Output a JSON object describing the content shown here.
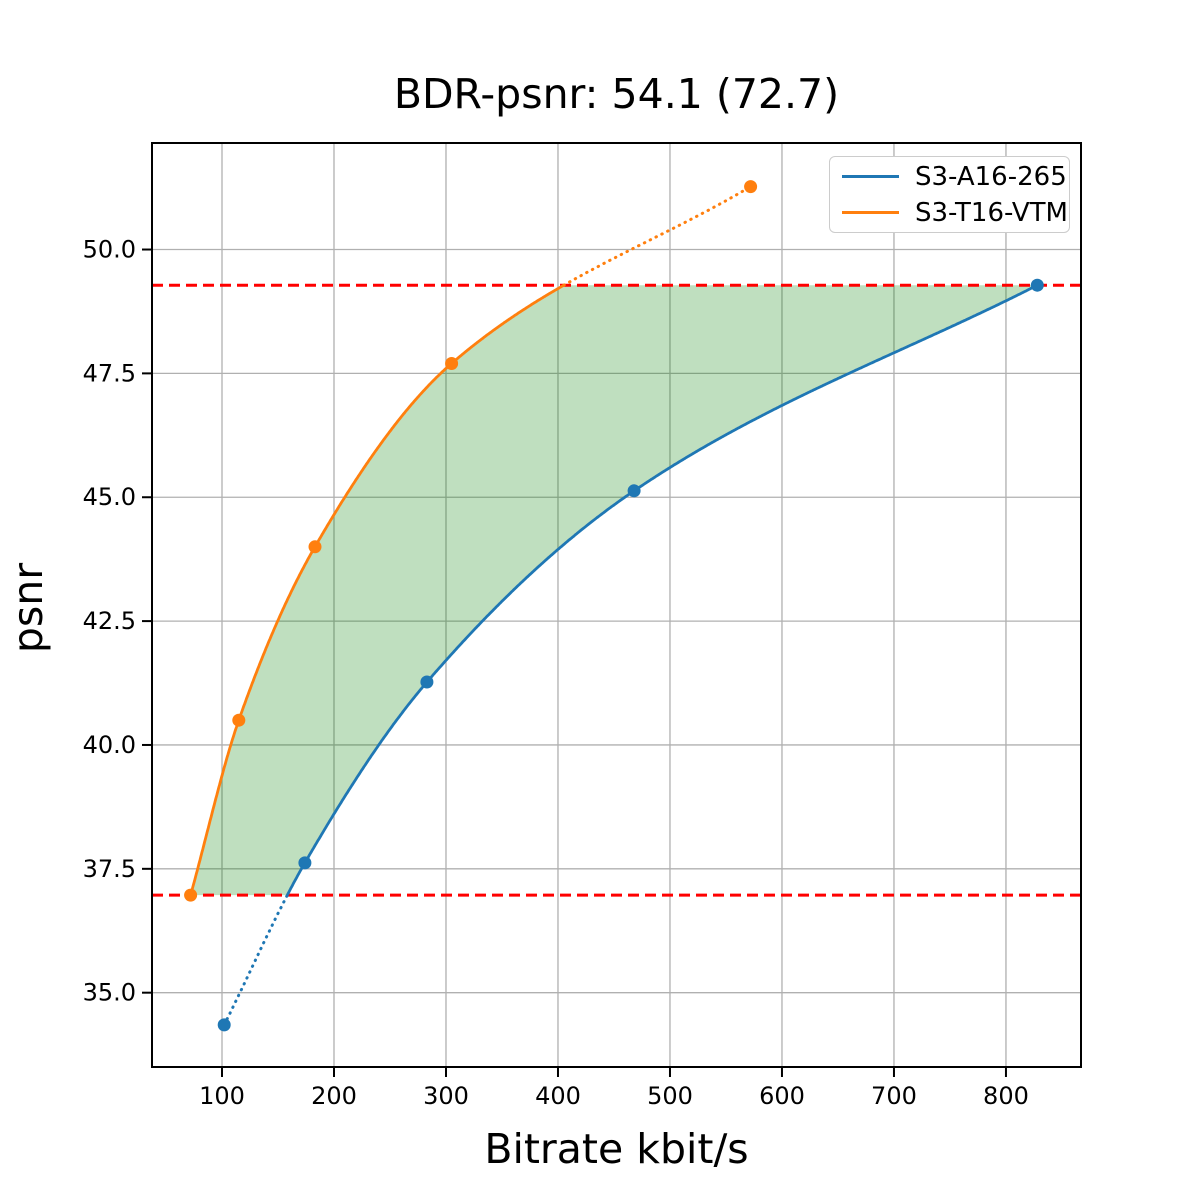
{
  "chart_data": {
    "type": "line",
    "title": "BDR-psnr: 54.1 (72.7)",
    "xlabel": "Bitrate kbit/s",
    "ylabel": "psnr",
    "xlim": [
      37.5,
      867
    ],
    "ylim": [
      33.5,
      52.15
    ],
    "xticks": [
      100,
      200,
      300,
      400,
      500,
      600,
      700,
      800
    ],
    "xtick_labels": [
      "100",
      "200",
      "300",
      "400",
      "500",
      "600",
      "700",
      "800"
    ],
    "yticks": [
      35.0,
      37.5,
      40.0,
      42.5,
      45.0,
      47.5,
      50.0
    ],
    "ytick_labels": [
      "35.0",
      "37.5",
      "40.0",
      "42.5",
      "45.0",
      "47.5",
      "50.0"
    ],
    "grid": true,
    "grid_color": "#b0b0b0",
    "legend_position": "upper right",
    "series": [
      {
        "name": "S3-A16-265",
        "color": "#1f77b4",
        "points": [
          [
            102,
            34.35
          ],
          [
            174,
            37.62
          ],
          [
            283,
            41.27
          ],
          [
            468,
            45.13
          ],
          [
            828,
            49.28
          ]
        ],
        "dotted_outside": {
          "where": "below",
          "y": 36.97
        }
      },
      {
        "name": "S3-T16-VTM",
        "color": "#ff7f0e",
        "points": [
          [
            72,
            36.97
          ],
          [
            115,
            40.5
          ],
          [
            183,
            44.0
          ],
          [
            305,
            47.7
          ],
          [
            572,
            51.27
          ]
        ],
        "dotted_outside": {
          "where": "above",
          "y": 49.28
        }
      }
    ],
    "hlines": [
      {
        "y": 36.97,
        "color": "#ff0000",
        "style": "dashed"
      },
      {
        "y": 49.28,
        "color": "#ff0000",
        "style": "dashed"
      }
    ],
    "shaded_region": {
      "color": "#008000",
      "opacity": 0.25,
      "psnr_range": [
        36.97,
        49.28
      ]
    }
  }
}
